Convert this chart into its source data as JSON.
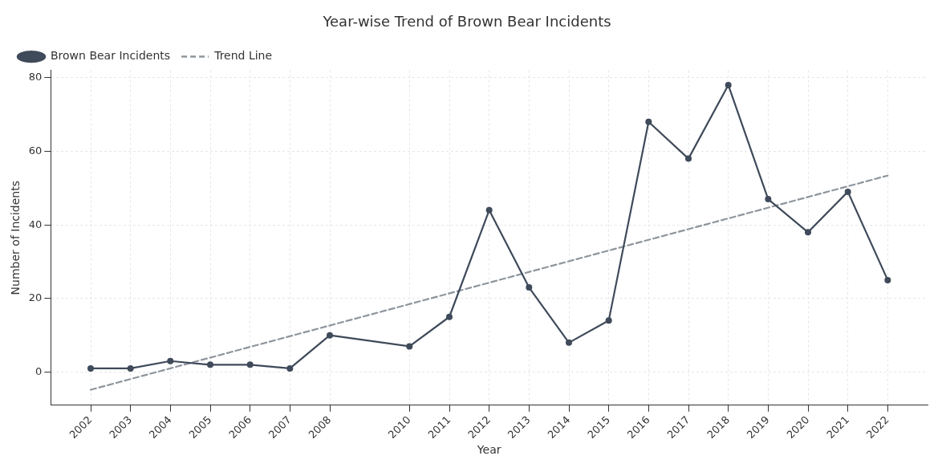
{
  "chart_data": {
    "type": "line",
    "title": "Year-wise Trend of Brown Bear Incidents",
    "xlabel": "Year",
    "ylabel": "Number of Incidents",
    "x": [
      2002,
      2003,
      2004,
      2005,
      2006,
      2007,
      2008,
      2010,
      2011,
      2012,
      2013,
      2014,
      2015,
      2016,
      2017,
      2018,
      2019,
      2020,
      2021,
      2022
    ],
    "series": [
      {
        "name": "Brown Bear Incidents",
        "color": "#3f4a5a",
        "values": [
          1,
          1,
          3,
          2,
          2,
          1,
          10,
          7,
          15,
          44,
          23,
          8,
          14,
          68,
          58,
          78,
          47,
          38,
          49,
          25
        ],
        "marker": "circle",
        "line_style": "solid"
      },
      {
        "name": "Trend Line",
        "type": "line",
        "color": "#8e959d",
        "x": [
          2002,
          2022
        ],
        "values": [
          -4.8,
          53.4
        ],
        "marker": "none",
        "line_style": "dashed"
      }
    ],
    "xlim": [
      2001,
      2023
    ],
    "ylim": [
      -9,
      82
    ],
    "xticks": [
      2002,
      2003,
      2004,
      2005,
      2006,
      2007,
      2008,
      2010,
      2011,
      2012,
      2013,
      2014,
      2015,
      2016,
      2017,
      2018,
      2019,
      2020,
      2021,
      2022
    ],
    "yticks": [
      0,
      20,
      40,
      60,
      80
    ],
    "grid": true,
    "legend": "top left"
  }
}
